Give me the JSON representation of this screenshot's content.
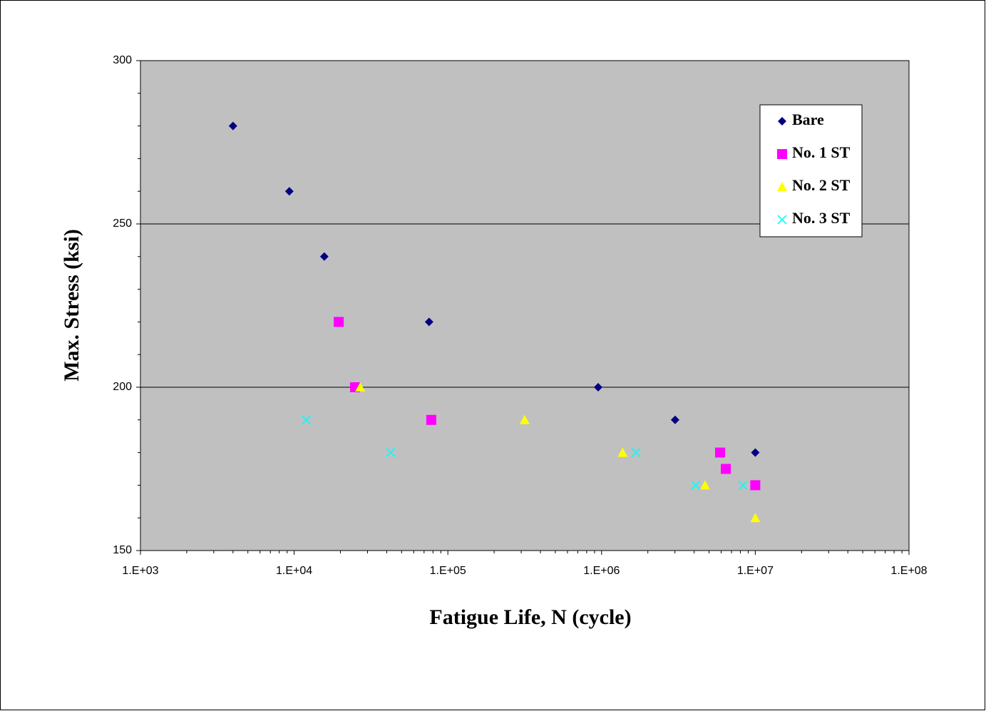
{
  "chart_data": {
    "type": "scatter",
    "x_label": "Fatigue Life, N (cycle)",
    "y_label": "Max. Stress (ksi)",
    "xscale": "log",
    "xlim": [
      1000,
      100000000
    ],
    "xticks": [
      {
        "value": 1000,
        "label": "1.E+03"
      },
      {
        "value": 10000,
        "label": "1.E+04"
      },
      {
        "value": 100000,
        "label": "1.E+05"
      },
      {
        "value": 1000000,
        "label": "1.E+06"
      },
      {
        "value": 10000000,
        "label": "1.E+07"
      },
      {
        "value": 100000000,
        "label": "1.E+08"
      }
    ],
    "ylim": [
      150,
      300
    ],
    "yticks": [
      150,
      200,
      250,
      300
    ],
    "yminorticks": [
      160,
      170,
      180,
      190,
      210,
      220,
      230,
      240,
      260,
      270,
      280,
      290
    ],
    "grid": true,
    "legend": "upper right",
    "series": [
      {
        "name": "Bare",
        "color": "#000080",
        "marker": "diamond",
        "x": [
          4000,
          9300,
          15700,
          75500,
          950000,
          3010000,
          10000000
        ],
        "values": [
          280,
          260,
          240,
          220,
          200,
          190,
          180
        ]
      },
      {
        "name": "No. 1 ST",
        "color": "#ff00ff",
        "marker": "square",
        "x": [
          19500,
          24900,
          78000,
          5900000,
          6430000,
          10000000
        ],
        "values": [
          220,
          200,
          190,
          180,
          175,
          170
        ]
      },
      {
        "name": "No. 2 ST",
        "color": "#ffff00",
        "marker": "triangle",
        "x": [
          26900,
          316000,
          1370000,
          4710000,
          10000000
        ],
        "values": [
          200,
          190,
          180,
          170,
          160
        ]
      },
      {
        "name": "No. 3 ST",
        "color": "#00ffff",
        "marker": "x",
        "x": [
          12000,
          42500,
          1670000,
          4100000,
          8300000
        ],
        "values": [
          190,
          180,
          180,
          170,
          170
        ]
      }
    ]
  }
}
